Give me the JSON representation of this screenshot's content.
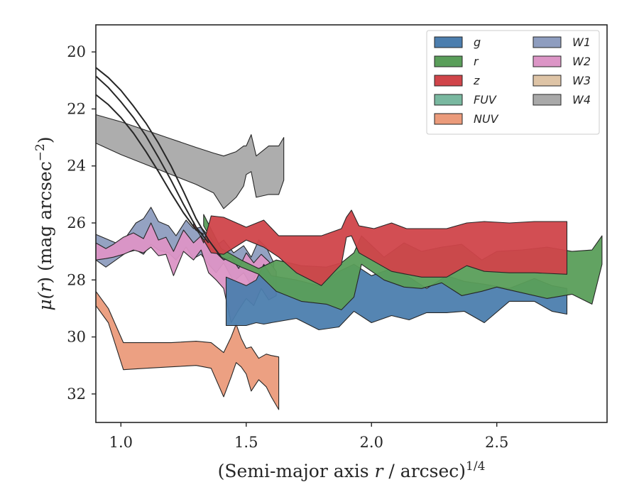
{
  "chart_data": {
    "type": "area",
    "title": "",
    "xlabel": "(Semi-major axis r / arcsec)",
    "xlabel_parts": {
      "pre": "(Semi-major axis ",
      "var": "r",
      "post": " / arcsec)",
      "sup": "1/4"
    },
    "ylabel": "μ(r) (mag arcsec⁻²)",
    "ylabel_parts": {
      "sym": "μ(",
      "var": "r",
      "mid": ") (mag arcsec",
      "sup": "−2",
      "end": ")"
    },
    "xlim": [
      0.9,
      2.94
    ],
    "ylim": [
      33.0,
      19.05
    ],
    "y_inverted": true,
    "xticks": [
      1.0,
      1.5,
      2.0,
      2.5
    ],
    "xtick_labels": [
      "1.0",
      "1.5",
      "2.0",
      "2.5"
    ],
    "yticks": [
      20,
      22,
      24,
      26,
      28,
      30,
      32
    ],
    "ytick_labels": [
      "20",
      "22",
      "24",
      "26",
      "28",
      "30",
      "32"
    ],
    "grid": false,
    "legend_position": "top-right",
    "legend_columns": 2,
    "series": [
      {
        "name": "W4",
        "color": "#a9a9a9",
        "x": [
          0.9,
          1.0,
          1.1,
          1.2,
          1.3,
          1.37,
          1.41,
          1.46,
          1.49,
          1.5,
          1.52,
          1.54,
          1.59,
          1.6,
          1.63,
          1.65
        ],
        "y_upper": [
          22.2,
          22.45,
          22.75,
          23.05,
          23.35,
          23.55,
          23.65,
          23.5,
          23.3,
          23.3,
          22.9,
          23.65,
          23.3,
          23.3,
          23.3,
          23.0
        ],
        "y_lower": [
          23.2,
          23.6,
          23.95,
          24.3,
          24.65,
          24.95,
          25.5,
          25.1,
          24.7,
          24.3,
          24.2,
          25.1,
          25.0,
          25.0,
          25.0,
          24.5
        ]
      },
      {
        "name": "W1",
        "color": "#8e9dbf",
        "x": [
          0.9,
          0.94,
          0.98,
          1.02,
          1.06,
          1.09,
          1.12,
          1.15,
          1.19,
          1.22,
          1.26,
          1.29,
          1.32,
          1.35,
          1.38,
          1.41,
          1.45,
          1.49,
          1.52,
          1.55,
          1.58,
          1.61
        ],
        "y_upper": [
          26.4,
          26.55,
          26.7,
          26.5,
          26.0,
          25.85,
          25.45,
          25.95,
          26.1,
          26.45,
          25.9,
          26.2,
          26.15,
          26.45,
          26.8,
          26.6,
          27.05,
          26.8,
          27.2,
          26.6,
          26.85,
          27.4
        ],
        "y_lower": [
          27.3,
          27.55,
          27.3,
          27.05,
          26.95,
          27.1,
          26.75,
          26.95,
          27.05,
          27.3,
          26.85,
          27.25,
          27.1,
          27.45,
          27.75,
          27.4,
          28.05,
          27.75,
          28.2,
          27.6,
          27.85,
          28.2
        ]
      },
      {
        "name": "W2",
        "color": "#dc95c6",
        "x": [
          0.9,
          0.94,
          0.97,
          1.01,
          1.05,
          1.09,
          1.12,
          1.15,
          1.18,
          1.21,
          1.25,
          1.29,
          1.32,
          1.35,
          1.38,
          1.41,
          1.44,
          1.47,
          1.5,
          1.53,
          1.56,
          1.59,
          1.62
        ],
        "y_upper": [
          26.7,
          26.9,
          26.75,
          26.5,
          26.35,
          26.55,
          26.0,
          26.6,
          26.5,
          27.0,
          26.25,
          26.7,
          26.45,
          26.85,
          27.05,
          27.3,
          27.2,
          27.6,
          27.05,
          27.4,
          27.1,
          27.35,
          27.7
        ],
        "y_lower": [
          27.3,
          27.25,
          27.2,
          27.1,
          26.95,
          27.05,
          26.85,
          27.15,
          27.1,
          27.85,
          27.0,
          27.3,
          26.95,
          27.75,
          28.0,
          28.3,
          29.5,
          29.05,
          28.65,
          28.9,
          28.3,
          28.7,
          28.55
        ]
      },
      {
        "name": "NUV",
        "color": "#eb9b7b",
        "x": [
          0.9,
          0.95,
          1.01,
          1.1,
          1.2,
          1.3,
          1.36,
          1.41,
          1.44,
          1.46,
          1.48,
          1.5,
          1.52,
          1.55,
          1.58,
          1.6,
          1.63
        ],
        "y_upper": [
          28.4,
          29.0,
          30.2,
          30.2,
          30.2,
          30.15,
          30.2,
          30.55,
          30.0,
          29.55,
          30.05,
          30.4,
          30.35,
          30.75,
          30.6,
          30.65,
          30.7
        ],
        "y_lower": [
          28.9,
          29.5,
          31.15,
          31.1,
          31.05,
          31.0,
          31.1,
          32.1,
          31.4,
          30.9,
          31.05,
          31.3,
          31.9,
          31.5,
          31.75,
          32.1,
          32.55
        ]
      },
      {
        "name": "g",
        "color": "#4c7eae",
        "x": [
          1.42,
          1.5,
          1.54,
          1.57,
          1.6,
          1.7,
          1.79,
          1.87,
          1.93,
          2.0,
          2.08,
          2.15,
          2.22,
          2.3,
          2.37,
          2.45,
          2.55,
          2.65,
          2.72,
          2.78
        ],
        "y_upper": [
          27.9,
          28.2,
          28.0,
          27.45,
          27.85,
          28.0,
          28.2,
          27.7,
          27.45,
          27.85,
          27.6,
          27.9,
          28.3,
          27.85,
          28.05,
          28.15,
          28.3,
          27.95,
          28.2,
          28.3
        ],
        "y_lower": [
          29.6,
          29.6,
          29.5,
          29.55,
          29.5,
          29.35,
          29.75,
          29.65,
          29.1,
          29.5,
          29.25,
          29.4,
          29.15,
          29.15,
          29.1,
          29.5,
          28.75,
          28.75,
          29.1,
          29.2
        ]
      },
      {
        "name": "r",
        "color": "#5a9e5a",
        "x": [
          1.33,
          1.4,
          1.48,
          1.55,
          1.62,
          1.72,
          1.82,
          1.88,
          1.93,
          1.96,
          2.05,
          2.13,
          2.2,
          2.28,
          2.36,
          2.44,
          2.5,
          2.6,
          2.7,
          2.8,
          2.88,
          2.92
        ],
        "y_upper": [
          25.7,
          26.9,
          27.3,
          27.6,
          27.3,
          27.5,
          27.55,
          27.4,
          27.05,
          26.45,
          27.2,
          26.7,
          27.0,
          26.85,
          26.75,
          27.3,
          27.0,
          26.95,
          26.85,
          27.0,
          26.95,
          26.45
        ],
        "y_lower": [
          26.1,
          27.2,
          27.55,
          27.8,
          28.4,
          28.75,
          28.85,
          29.05,
          28.6,
          27.45,
          28.0,
          28.25,
          28.3,
          28.1,
          28.55,
          28.4,
          28.25,
          28.45,
          28.65,
          28.5,
          28.85,
          27.45
        ]
      },
      {
        "name": "z",
        "color": "#d0454a",
        "x": [
          1.29,
          1.33,
          1.36,
          1.41,
          1.5,
          1.57,
          1.63,
          1.7,
          1.8,
          1.88,
          1.9,
          1.92,
          1.95,
          2.01,
          2.08,
          2.14,
          2.2,
          2.3,
          2.38,
          2.45,
          2.55,
          2.65,
          2.78
        ],
        "y_upper": [
          25.95,
          26.7,
          25.75,
          25.8,
          26.15,
          25.9,
          26.45,
          26.45,
          26.45,
          26.2,
          25.8,
          25.55,
          26.1,
          26.2,
          26.0,
          26.2,
          26.2,
          26.2,
          26.0,
          25.95,
          26.0,
          25.95,
          25.95
        ],
        "y_lower": [
          26.1,
          26.6,
          27.05,
          27.1,
          26.6,
          26.85,
          27.2,
          27.75,
          28.2,
          27.45,
          26.5,
          26.45,
          27.05,
          27.35,
          27.7,
          27.8,
          27.9,
          27.9,
          27.5,
          27.7,
          27.75,
          27.75,
          27.8
        ]
      }
    ],
    "profiles": [
      {
        "x": [
          0.9,
          0.95,
          1.0,
          1.05,
          1.1,
          1.15,
          1.2,
          1.25,
          1.3,
          1.35,
          1.4
        ],
        "y": [
          20.55,
          20.9,
          21.35,
          21.9,
          22.5,
          23.2,
          24.0,
          24.9,
          25.85,
          26.6,
          27.2
        ]
      },
      {
        "x": [
          0.9,
          0.95,
          1.0,
          1.05,
          1.1,
          1.15,
          1.2,
          1.25,
          1.3,
          1.35
        ],
        "y": [
          20.85,
          21.25,
          21.75,
          22.3,
          22.95,
          23.7,
          24.5,
          25.35,
          26.15,
          26.7
        ]
      },
      {
        "x": [
          0.9,
          0.95,
          1.0,
          1.05,
          1.1,
          1.15,
          1.2,
          1.25,
          1.3,
          1.33
        ],
        "y": [
          21.5,
          21.85,
          22.3,
          22.85,
          23.5,
          24.2,
          24.95,
          25.65,
          26.25,
          26.4
        ]
      }
    ],
    "legend": [
      {
        "name": "g",
        "color": "#4c7eae"
      },
      {
        "name": "r",
        "color": "#5a9e5a"
      },
      {
        "name": "z",
        "color": "#d0454a"
      },
      {
        "name": "FUV",
        "color": "#79b8a0"
      },
      {
        "name": "NUV",
        "color": "#eb9b7b"
      },
      {
        "name": "W1",
        "color": "#8e9dbf"
      },
      {
        "name": "W2",
        "color": "#dc95c6"
      },
      {
        "name": "W3",
        "color": "#dec4a6"
      },
      {
        "name": "W4",
        "color": "#a9a9a9"
      }
    ]
  }
}
